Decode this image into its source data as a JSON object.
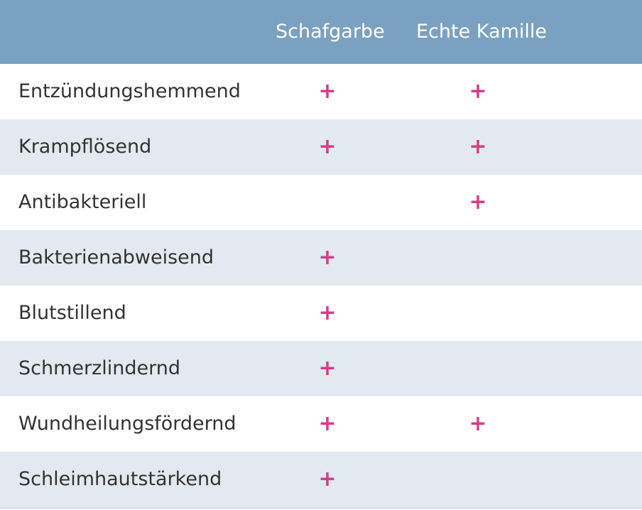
{
  "header": {
    "columns": [
      "Schafgarbe",
      "Echte Kamille"
    ]
  },
  "mark_symbol": "+",
  "rows": [
    {
      "label": "Entzündungshemmend",
      "schafgarbe": "+",
      "echte_kamille": "+"
    },
    {
      "label": "Krampflösend",
      "schafgarbe": "+",
      "echte_kamille": "+"
    },
    {
      "label": "Antibakteriell",
      "schafgarbe": "",
      "echte_kamille": "+"
    },
    {
      "label": "Bakterienabweisend",
      "schafgarbe": "+",
      "echte_kamille": ""
    },
    {
      "label": "Blutstillend",
      "schafgarbe": "+",
      "echte_kamille": ""
    },
    {
      "label": "Schmerzlindernd",
      "schafgarbe": "+",
      "echte_kamille": ""
    },
    {
      "label": "Wundheilungsfördernd",
      "schafgarbe": "+",
      "echte_kamille": "+"
    },
    {
      "label": "Schleimhautstärkend",
      "schafgarbe": "+",
      "echte_kamille": ""
    }
  ],
  "colors": {
    "header_bg": "#7ba1c0",
    "header_text": "#ffffff",
    "stripe_bg": "#e3e9f0",
    "mark": "#d43d88",
    "label_text": "#333333"
  }
}
